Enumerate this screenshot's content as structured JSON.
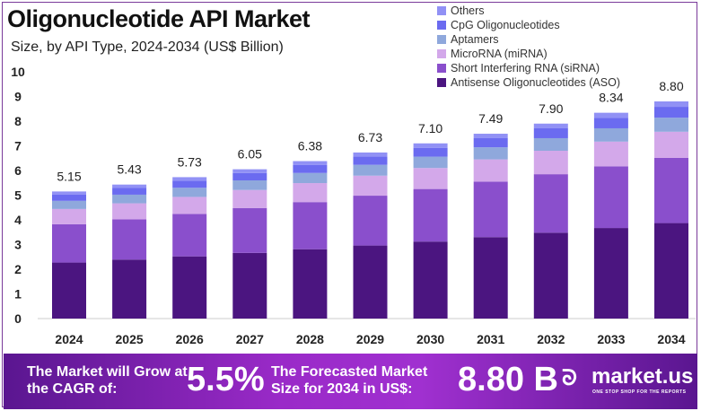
{
  "chart_data": {
    "type": "bar",
    "stacked": true,
    "title": "Oligonucleotide API Market",
    "subtitle": "Size, by API Type, 2024-2034 (US$ Billion)",
    "categories": [
      "2024",
      "2025",
      "2026",
      "2027",
      "2028",
      "2029",
      "2030",
      "2031",
      "2032",
      "2033",
      "2034"
    ],
    "totals": [
      "5.15",
      "5.43",
      "5.73",
      "6.05",
      "6.38",
      "6.73",
      "7.10",
      "7.49",
      "7.90",
      "8.34",
      "8.80"
    ],
    "ylim": [
      0,
      10
    ],
    "yticks": [
      "0",
      "1",
      "2",
      "3",
      "4",
      "5",
      "6",
      "7",
      "8",
      "9",
      "10"
    ],
    "grid": false,
    "legend_placement": "top-right",
    "series": [
      {
        "name": "Antisense Oligonucleotides (ASO)",
        "color": "#4b1580",
        "values": [
          2.27,
          2.39,
          2.52,
          2.66,
          2.81,
          2.96,
          3.12,
          3.3,
          3.48,
          3.67,
          3.87
        ]
      },
      {
        "name": "Short Interfering RNA (siRNA)",
        "color": "#8a4fcc",
        "values": [
          1.55,
          1.63,
          1.72,
          1.82,
          1.91,
          2.02,
          2.13,
          2.25,
          2.37,
          2.5,
          2.64
        ]
      },
      {
        "name": "MicroRNA (miRNA)",
        "color": "#d3a8ea",
        "values": [
          0.62,
          0.65,
          0.69,
          0.73,
          0.77,
          0.81,
          0.85,
          0.9,
          0.95,
          1.0,
          1.06
        ]
      },
      {
        "name": "Aptamers",
        "color": "#8fa8dc",
        "values": [
          0.33,
          0.35,
          0.37,
          0.39,
          0.41,
          0.44,
          0.46,
          0.49,
          0.51,
          0.54,
          0.57
        ]
      },
      {
        "name": "CpG Oligonucleotides",
        "color": "#6b6bf0",
        "values": [
          0.26,
          0.27,
          0.29,
          0.3,
          0.32,
          0.34,
          0.36,
          0.37,
          0.4,
          0.42,
          0.44
        ]
      },
      {
        "name": "Others",
        "color": "#9191f5",
        "values": [
          0.12,
          0.14,
          0.14,
          0.15,
          0.16,
          0.16,
          0.18,
          0.18,
          0.19,
          0.21,
          0.22
        ]
      }
    ]
  },
  "banner": {
    "cagr_text": "The Market will Grow at the CAGR of:",
    "cagr": "5.5%",
    "forecast_text": "The Forecasted Market Size for 2034 in US$:",
    "forecast": "8.80 B",
    "brand": "market.us",
    "tagline": "ONE STOP SHOP FOR THE REPORTS"
  }
}
